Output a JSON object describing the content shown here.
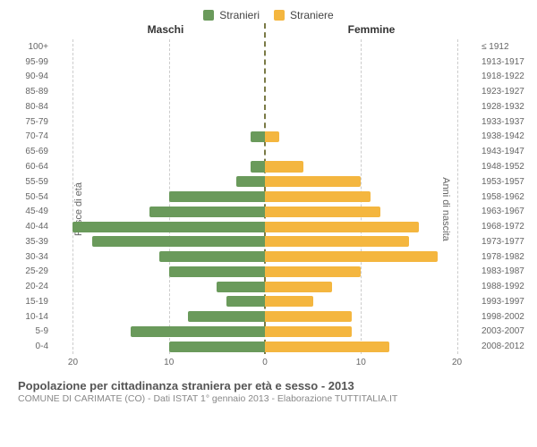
{
  "legend": {
    "male": {
      "label": "Stranieri",
      "color": "#6a9a5b"
    },
    "female": {
      "label": "Straniere",
      "color": "#f4b63f"
    }
  },
  "headers": {
    "left": "Maschi",
    "right": "Femmine"
  },
  "axis_titles": {
    "left": "Fasce di età",
    "right": "Anni di nascita"
  },
  "chart": {
    "type": "population-pyramid",
    "background_color": "#ffffff",
    "grid_color": "#cccccc",
    "center_line_color": "#7a7a46",
    "bar_fill_left": "#6a9a5b",
    "bar_fill_right": "#f4b63f",
    "xlim": 22,
    "xticks_left": [
      20,
      10,
      0
    ],
    "xticks_right": [
      0,
      10,
      20
    ],
    "label_fontsize": 10,
    "age_groups": [
      {
        "age": "100+",
        "birth": "≤ 1912",
        "m": 0,
        "f": 0
      },
      {
        "age": "95-99",
        "birth": "1913-1917",
        "m": 0,
        "f": 0
      },
      {
        "age": "90-94",
        "birth": "1918-1922",
        "m": 0,
        "f": 0
      },
      {
        "age": "85-89",
        "birth": "1923-1927",
        "m": 0,
        "f": 0
      },
      {
        "age": "80-84",
        "birth": "1928-1932",
        "m": 0,
        "f": 0
      },
      {
        "age": "75-79",
        "birth": "1933-1937",
        "m": 0,
        "f": 0
      },
      {
        "age": "70-74",
        "birth": "1938-1942",
        "m": 1.5,
        "f": 1.5
      },
      {
        "age": "65-69",
        "birth": "1943-1947",
        "m": 0,
        "f": 0
      },
      {
        "age": "60-64",
        "birth": "1948-1952",
        "m": 1.5,
        "f": 4
      },
      {
        "age": "55-59",
        "birth": "1953-1957",
        "m": 3,
        "f": 10
      },
      {
        "age": "50-54",
        "birth": "1958-1962",
        "m": 10,
        "f": 11
      },
      {
        "age": "45-49",
        "birth": "1963-1967",
        "m": 12,
        "f": 12
      },
      {
        "age": "40-44",
        "birth": "1968-1972",
        "m": 20,
        "f": 16
      },
      {
        "age": "35-39",
        "birth": "1973-1977",
        "m": 18,
        "f": 15
      },
      {
        "age": "30-34",
        "birth": "1978-1982",
        "m": 11,
        "f": 18
      },
      {
        "age": "25-29",
        "birth": "1983-1987",
        "m": 10,
        "f": 10
      },
      {
        "age": "20-24",
        "birth": "1988-1992",
        "m": 5,
        "f": 7
      },
      {
        "age": "15-19",
        "birth": "1993-1997",
        "m": 4,
        "f": 5
      },
      {
        "age": "10-14",
        "birth": "1998-2002",
        "m": 8,
        "f": 9
      },
      {
        "age": "5-9",
        "birth": "2003-2007",
        "m": 14,
        "f": 9
      },
      {
        "age": "0-4",
        "birth": "2008-2012",
        "m": 10,
        "f": 13
      }
    ]
  },
  "footer": {
    "title": "Popolazione per cittadinanza straniera per età e sesso - 2013",
    "subtitle": "COMUNE DI CARIMATE (CO) - Dati ISTAT 1° gennaio 2013 - Elaborazione TUTTITALIA.IT"
  }
}
